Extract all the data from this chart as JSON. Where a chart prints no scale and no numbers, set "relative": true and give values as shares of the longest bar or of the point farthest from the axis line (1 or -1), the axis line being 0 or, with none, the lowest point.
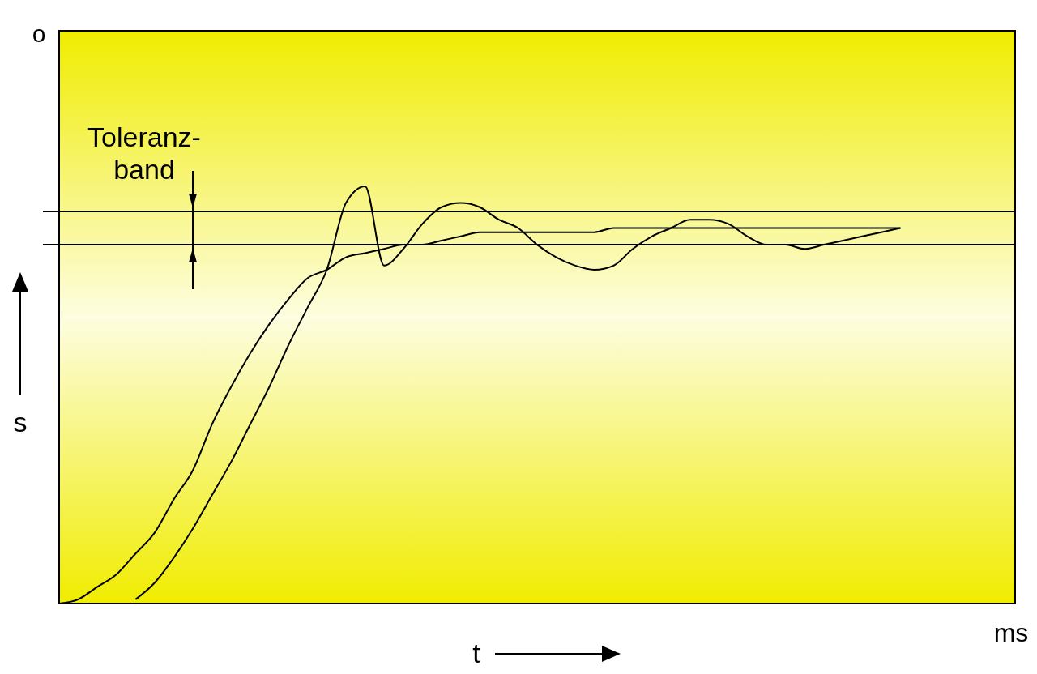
{
  "chart_data": {
    "type": "line",
    "relative": true,
    "xlabel": "t",
    "ylabel": "s",
    "categories": [
      null,
      null,
      null,
      null,
      null,
      null,
      null,
      null,
      null,
      null,
      null,
      null,
      null,
      null,
      null,
      null,
      null,
      null,
      null,
      null,
      null,
      null,
      null,
      null,
      null,
      null,
      null,
      null,
      null,
      null,
      null,
      null,
      null,
      null,
      null,
      null,
      null,
      null,
      null,
      null,
      null,
      null,
      null,
      null,
      null,
      null,
      null,
      null,
      null,
      null,
      null
    ],
    "series": [
      {
        "color": "#000000",
        "values": [
          0,
          0.01,
          0.04,
          0.07,
          0.12,
          0.17,
          0.25,
          0.32,
          0.43,
          0.52,
          0.6,
          0.67,
          0.73,
          0.78,
          0.8,
          0.83,
          0.84,
          0.85,
          0.86,
          0.86,
          0.87,
          0.88,
          0.89,
          0.89,
          0.89,
          0.89,
          0.89,
          0.89,
          0.89,
          0.9,
          0.9,
          0.9,
          0.9,
          0.9,
          0.9,
          0.9,
          0.9,
          0.9,
          0.9,
          0.9,
          0.9,
          0.9,
          0.9,
          0.9,
          0.9,
          null,
          null,
          null,
          null,
          null,
          null
        ]
      },
      {
        "color": "#000000",
        "values": [
          null,
          null,
          null,
          null,
          0.01,
          0.05,
          0.11,
          0.18,
          0.26,
          0.34,
          0.43,
          0.52,
          0.62,
          0.71,
          0.8,
          0.96,
          1,
          0.81,
          0.85,
          0.91,
          0.95,
          0.96,
          0.95,
          0.92,
          0.9,
          0.86,
          0.83,
          0.81,
          0.8,
          0.81,
          0.85,
          0.88,
          0.9,
          0.92,
          0.92,
          0.91,
          0.88,
          0.86,
          0.86,
          0.85,
          0.86,
          0.87,
          0.88,
          0.89,
          0.9,
          null,
          null,
          null,
          null,
          null,
          null
        ]
      }
    ],
    "ref_lines": [
      {
        "axis": "y",
        "value": 0.94,
        "label": "Toleranz-\nband"
      },
      {
        "axis": "y",
        "value": 0.86
      }
    ],
    "annotations": [
      "o",
      "ms"
    ]
  }
}
